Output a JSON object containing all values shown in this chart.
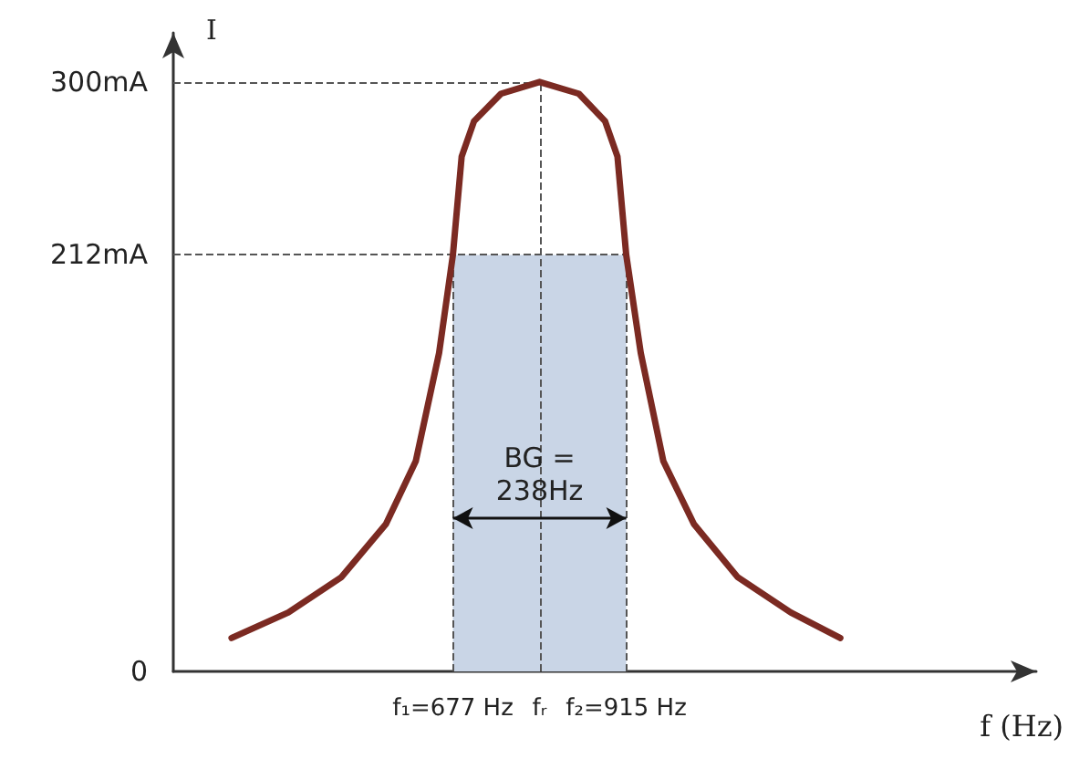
{
  "chart_data": {
    "type": "line",
    "xlabel": "f (Hz)",
    "ylabel": "I",
    "x": [
      373,
      451,
      524,
      585,
      626,
      658,
      677,
      689,
      706,
      743,
      796,
      850,
      886,
      903,
      915,
      935,
      966,
      1008,
      1068,
      1141,
      1209
    ],
    "series": [
      {
        "color": "#7b2a22",
        "values": [
          17,
          30,
          48,
          75,
          107,
          162,
          212,
          262,
          280,
          294,
          300,
          294,
          280,
          262,
          212,
          162,
          107,
          75,
          48,
          30,
          17
        ]
      }
    ],
    "xlim": [
      293,
      1478
    ],
    "ylim": [
      0,
      325
    ],
    "xticks": [
      {
        "value": 677,
        "label": "f₁=677 Hz"
      },
      {
        "value": 796,
        "label": "fᵣ"
      },
      {
        "value": 915,
        "label": "f₂=915 Hz"
      }
    ],
    "yticks": [
      0,
      {
        "value": 212,
        "label": "212mA"
      },
      {
        "value": 300,
        "label": "300mA"
      }
    ],
    "ref_lines": [
      {
        "axis": "y",
        "value": 300,
        "line_style": "dashed",
        "color": "#555555"
      },
      {
        "axis": "y",
        "value": 212,
        "line_style": "dashed",
        "color": "#555555"
      },
      {
        "axis": "x",
        "value": 677,
        "line_style": "dashed",
        "color": "#555555"
      },
      {
        "axis": "x",
        "value": 796,
        "line_style": "dashed",
        "color": "#555555"
      },
      {
        "axis": "x",
        "value": 915,
        "line_style": "dashed",
        "color": "#555555"
      }
    ],
    "bands": [
      {
        "axis": "x",
        "from": 677,
        "to": 915,
        "color": "#c9d5e6"
      }
    ],
    "annotations": [
      {
        "text": "BG =\n238Hz",
        "x": 796,
        "y": 78
      }
    ],
    "grid": false,
    "marker": "none",
    "line_style": "solid"
  }
}
